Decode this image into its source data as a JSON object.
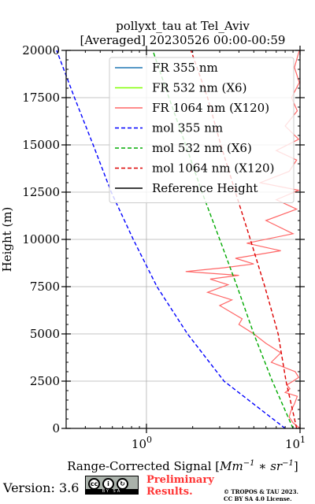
{
  "title": {
    "line1": "pollyxt_tau at Tel_Aviv",
    "line2": "[Averaged] 20230526 00:00-00:59"
  },
  "chart_data": {
    "type": "line",
    "xlabel": "Range-Corrected Signal [Mm^-1 * sr^-1]",
    "ylabel": "Height (m)",
    "xscale": "log",
    "xlim": [
      0.3,
      10
    ],
    "ylim": [
      0,
      20000
    ],
    "xticks": [
      1,
      10
    ],
    "xtick_labels": [
      "10^0",
      "10^1"
    ],
    "yticks": [
      0,
      2500,
      5000,
      7500,
      10000,
      12500,
      15000,
      17500,
      20000
    ],
    "ytick_labels": [
      "0",
      "2500",
      "5000",
      "7500",
      "10000",
      "12500",
      "15000",
      "17500",
      "20000"
    ],
    "grid": true,
    "legend_position": "upper-right",
    "series": [
      {
        "name": "FR 355 nm",
        "color": "#1f77b4",
        "style": "solid",
        "points": []
      },
      {
        "name": "FR 532 nm (X6)",
        "color": "#80ff00",
        "style": "solid",
        "points": []
      },
      {
        "name": "FR 1064 nm (X120)",
        "color": "#ff6666",
        "style": "solid",
        "points": [
          [
            10,
            0
          ],
          [
            9.0,
            300
          ],
          [
            8.5,
            600
          ],
          [
            8.7,
            900
          ],
          [
            9.2,
            1300
          ],
          [
            9.6,
            1700
          ],
          [
            8.0,
            1900
          ],
          [
            8.6,
            2100
          ],
          [
            8.2,
            2300
          ],
          [
            9.0,
            2500
          ],
          [
            9.8,
            2700
          ],
          [
            9.3,
            3000
          ],
          [
            6.5,
            3500
          ],
          [
            7.5,
            4000
          ],
          [
            6.0,
            4500
          ],
          [
            5.0,
            5000
          ],
          [
            4.0,
            5500
          ],
          [
            4.2,
            5800
          ],
          [
            3.0,
            6500
          ],
          [
            3.6,
            6800
          ],
          [
            2.5,
            7200
          ],
          [
            3.4,
            7600
          ],
          [
            2.6,
            7900
          ],
          [
            4.0,
            8100
          ],
          [
            1.8,
            8300
          ],
          [
            3.2,
            8500
          ],
          [
            5.0,
            8700
          ],
          [
            3.8,
            9000
          ],
          [
            7.5,
            9400
          ],
          [
            4.5,
            9800
          ],
          [
            9.0,
            10300
          ],
          [
            6.0,
            11000
          ],
          [
            9.5,
            11600
          ],
          [
            7.0,
            12100
          ],
          [
            9.8,
            12600
          ],
          [
            5.5,
            13000
          ],
          [
            8.5,
            13600
          ],
          [
            9.5,
            14200
          ],
          [
            7.0,
            14700
          ],
          [
            9.8,
            15300
          ],
          [
            8.0,
            16000
          ],
          [
            9.6,
            16800
          ],
          [
            8.8,
            17500
          ],
          [
            9.9,
            18300
          ],
          [
            9.2,
            19100
          ],
          [
            9.9,
            20000
          ]
        ]
      },
      {
        "name": "mol 355 nm",
        "color": "#0000ff",
        "style": "dashed",
        "points": [
          [
            8.0,
            0
          ],
          [
            3.2,
            2500
          ],
          [
            1.85,
            5000
          ],
          [
            1.17,
            7500
          ],
          [
            0.82,
            10000
          ],
          [
            0.59,
            12500
          ],
          [
            0.45,
            15000
          ],
          [
            0.34,
            17500
          ],
          [
            0.26,
            20000
          ]
        ]
      },
      {
        "name": "mol 532 nm (X6)",
        "color": "#00aa00",
        "style": "dashed",
        "points": [
          [
            9.0,
            0
          ],
          [
            6.6,
            2500
          ],
          [
            5.0,
            5000
          ],
          [
            3.9,
            7500
          ],
          [
            3.0,
            10000
          ],
          [
            2.3,
            12500
          ],
          [
            1.8,
            15000
          ],
          [
            1.4,
            17500
          ],
          [
            1.1,
            20000
          ]
        ]
      },
      {
        "name": "mol 1064 nm (X120)",
        "color": "#dd0000",
        "style": "dashed",
        "points": [
          [
            9.5,
            0
          ],
          [
            8.1,
            2500
          ],
          [
            7.2,
            5000
          ],
          [
            5.9,
            7500
          ],
          [
            4.75,
            10000
          ],
          [
            3.8,
            12500
          ],
          [
            3.05,
            15000
          ],
          [
            2.5,
            17500
          ],
          [
            1.95,
            20000
          ]
        ]
      },
      {
        "name": "Reference Height",
        "color": "#000000",
        "style": "solid",
        "points": []
      }
    ]
  },
  "footer": {
    "version": "Version: 3.6",
    "cc_badge": "BY SA",
    "preliminary_line1": "Preliminary",
    "preliminary_line2": "Results.",
    "copyright_line1": "© TROPOS & TAU 2023.",
    "copyright_line2": "CC BY SA 4.0 License."
  }
}
